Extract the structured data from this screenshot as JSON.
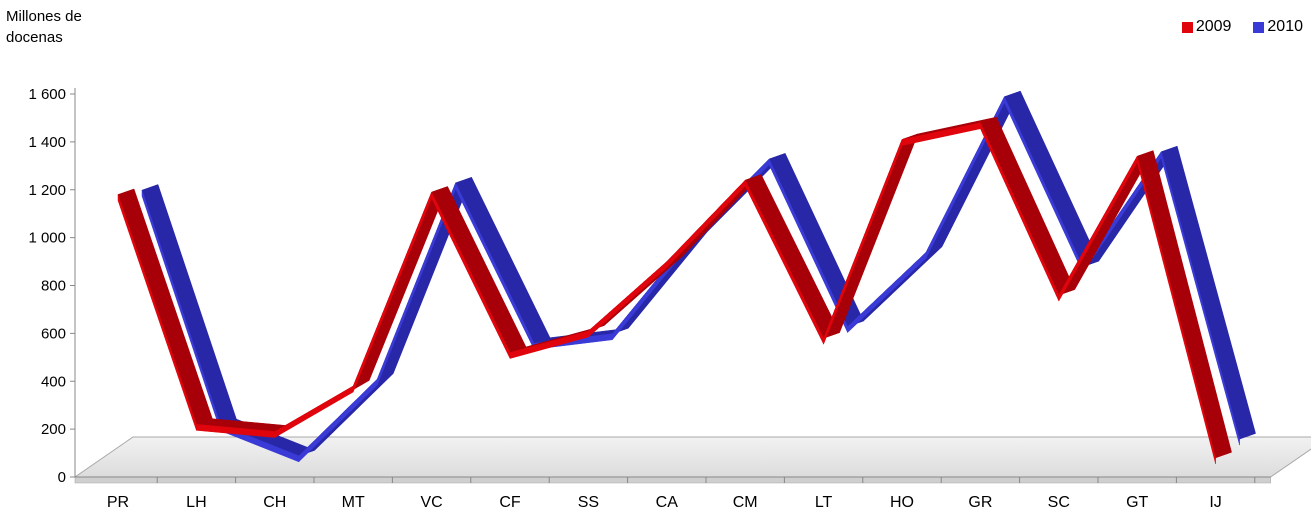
{
  "chart_data": {
    "type": "line",
    "style": "3d-ribbon",
    "ylabel": "Millones de\ndocenas",
    "ylim": [
      0,
      1600
    ],
    "yticks": [
      0,
      200,
      400,
      600,
      800,
      1000,
      1200,
      1400,
      1600
    ],
    "ytick_labels": [
      "0",
      "200",
      "400",
      "600",
      "800",
      "1 000",
      "1 200",
      "1 400",
      "1 600"
    ],
    "categories": [
      "PR",
      "LH",
      "CH",
      "MT",
      "VC",
      "CF",
      "SS",
      "CA",
      "CM",
      "LT",
      "HO",
      "GR",
      "SC",
      "GT",
      "IJ"
    ],
    "series": [
      {
        "name": "2009",
        "color": "#e0040c",
        "values": [
          1180,
          220,
          190,
          380,
          1190,
          520,
          610,
          900,
          1240,
          580,
          1410,
          1480,
          760,
          1340,
          80
        ]
      },
      {
        "name": "2010",
        "color": "#3a3ad6",
        "values": [
          1140,
          160,
          30,
          350,
          1170,
          500,
          540,
          940,
          1270,
          570,
          880,
          1530,
          820,
          1300,
          100
        ]
      }
    ],
    "legend_position": "top-right",
    "grid": false
  }
}
